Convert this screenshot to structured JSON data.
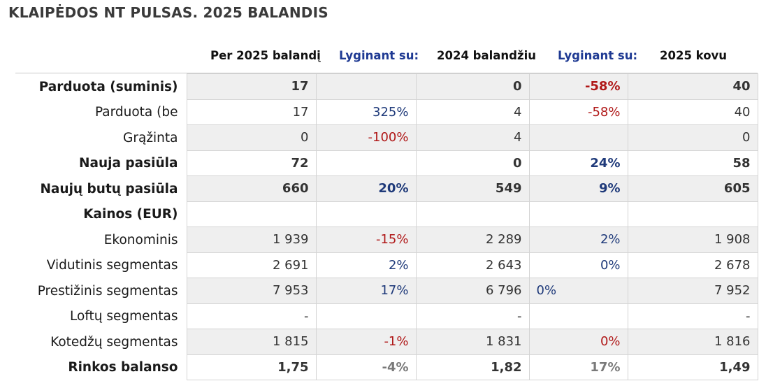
{
  "title": "KLAIPĖDOS NT PULSAS. 2025 BALANDIS",
  "headers": {
    "col1": "Per 2025 balandį",
    "col2": "Lyginant su:",
    "col3": "2024 balandžiu",
    "col4": "Lyginant su:",
    "col5": "2025 kovu"
  },
  "rows": [
    {
      "label": "Parduota (suminis)",
      "bold": true,
      "shade": true,
      "c1": "17",
      "c2": "",
      "c3": "0",
      "c4": "-58%",
      "c5": "40",
      "c2_color": "",
      "c4_color": "red"
    },
    {
      "label": "Parduota (be",
      "bold": false,
      "shade": false,
      "c1": "17",
      "c2": "325%",
      "c3": "4",
      "c4": "-58%",
      "c5": "40",
      "c2_color": "blue",
      "c4_color": "red"
    },
    {
      "label": "Grąžinta",
      "bold": false,
      "shade": true,
      "c1": "0",
      "c2": "-100%",
      "c3": "4",
      "c4": "",
      "c5": "0",
      "c2_color": "red",
      "c4_color": ""
    },
    {
      "label": "Nauja pasiūla",
      "bold": true,
      "shade": false,
      "c1": "72",
      "c2": "",
      "c3": "0",
      "c4": "24%",
      "c5": "58",
      "c2_color": "",
      "c4_color": "blue"
    },
    {
      "label": "Naujų butų pasiūla",
      "bold": true,
      "shade": true,
      "c1": "660",
      "c2": "20%",
      "c3": "549",
      "c4": "9%",
      "c5": "605",
      "c2_color": "blue",
      "c4_color": "blue"
    },
    {
      "label": "Kainos (EUR)",
      "bold": true,
      "shade": false,
      "c1": "",
      "c2": "",
      "c3": "",
      "c4": "",
      "c5": "",
      "c2_color": "",
      "c4_color": ""
    },
    {
      "label": "Ekonominis",
      "bold": false,
      "shade": true,
      "c1": "1 939",
      "c2": "-15%",
      "c3": "2 289",
      "c4": "2%",
      "c5": "1 908",
      "c2_color": "red",
      "c4_color": "blue"
    },
    {
      "label": "Vidutinis segmentas",
      "bold": false,
      "shade": false,
      "c1": "2 691",
      "c2": "2%",
      "c3": "2 643",
      "c4": "0%",
      "c5": "2 678",
      "c2_color": "blue",
      "c4_color": "blue"
    },
    {
      "label": "Prestižinis segmentas",
      "bold": false,
      "shade": true,
      "c1": "7 953",
      "c2": "17%",
      "c3": "6 796",
      "c4": "0%",
      "c5": "7 952",
      "c2_color": "blue",
      "c4_color": "blue",
      "c4_align": "left"
    },
    {
      "label": "Loftų segmentas",
      "bold": false,
      "shade": false,
      "c1": "-",
      "c2": "",
      "c3": "-",
      "c4": "",
      "c5": "-",
      "c2_color": "",
      "c4_color": ""
    },
    {
      "label": "Kotedžų segmentas",
      "bold": false,
      "shade": true,
      "c1": "1 815",
      "c2": "-1%",
      "c3": "1 831",
      "c4": "0%",
      "c5": "1 816",
      "c2_color": "red",
      "c4_color": "red"
    },
    {
      "label": "Rinkos balanso",
      "bold": true,
      "shade": false,
      "c1": "1,75",
      "c2": "-4%",
      "c3": "1,82",
      "c4": "17%",
      "c5": "1,49",
      "c2_color": "gray",
      "c4_color": "gray"
    }
  ]
}
